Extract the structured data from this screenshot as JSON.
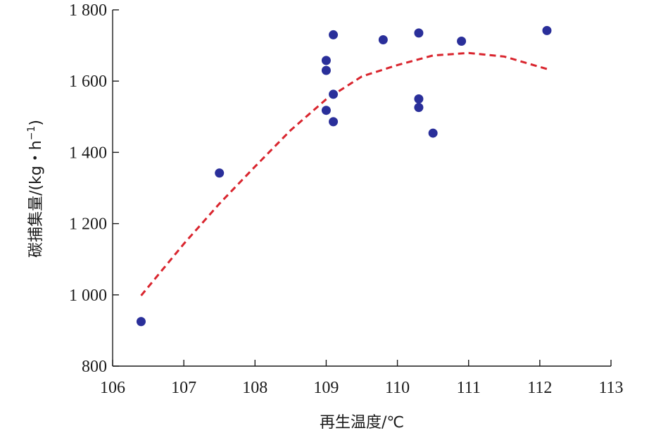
{
  "chart_data": {
    "type": "scatter",
    "xlabel": "再生温度/℃",
    "ylabel": "碳捕集量/(kg・h",
    "ylabel_sup": "−1",
    "ylabel_end": ")",
    "xlim": [
      106,
      113
    ],
    "ylim": [
      800,
      1800
    ],
    "x_ticks": [
      106,
      107,
      108,
      109,
      110,
      111,
      112,
      113
    ],
    "x_tick_labels": [
      "106",
      "107",
      "108",
      "109",
      "110",
      "111",
      "112",
      "113"
    ],
    "y_ticks": [
      800,
      1000,
      1200,
      1400,
      1600,
      1800
    ],
    "y_tick_labels": [
      "800",
      "1 000",
      "1 200",
      "1 400",
      "1 600",
      "1 800"
    ],
    "grid": false,
    "points": [
      {
        "x": 106.4,
        "y": 925
      },
      {
        "x": 107.5,
        "y": 1342
      },
      {
        "x": 109.0,
        "y": 1658
      },
      {
        "x": 109.0,
        "y": 1630
      },
      {
        "x": 109.0,
        "y": 1518
      },
      {
        "x": 109.1,
        "y": 1730
      },
      {
        "x": 109.1,
        "y": 1563
      },
      {
        "x": 109.1,
        "y": 1486
      },
      {
        "x": 109.8,
        "y": 1716
      },
      {
        "x": 110.3,
        "y": 1735
      },
      {
        "x": 110.3,
        "y": 1550
      },
      {
        "x": 110.3,
        "y": 1526
      },
      {
        "x": 110.5,
        "y": 1454
      },
      {
        "x": 110.9,
        "y": 1712
      },
      {
        "x": 112.1,
        "y": 1742
      }
    ],
    "fit_curve": {
      "style": "dashed",
      "points": [
        {
          "x": 106.4,
          "y": 998
        },
        {
          "x": 107.0,
          "y": 1143
        },
        {
          "x": 107.5,
          "y": 1256
        },
        {
          "x": 108.0,
          "y": 1360
        },
        {
          "x": 108.5,
          "y": 1462
        },
        {
          "x": 109.0,
          "y": 1549
        },
        {
          "x": 109.5,
          "y": 1613
        },
        {
          "x": 110.0,
          "y": 1645
        },
        {
          "x": 110.5,
          "y": 1672
        },
        {
          "x": 111.0,
          "y": 1679
        },
        {
          "x": 111.5,
          "y": 1669
        },
        {
          "x": 112.1,
          "y": 1634
        }
      ]
    },
    "colors": {
      "points": "#2a2f9a",
      "fit_line": "#d9252e",
      "axis": "#1a1a1a"
    }
  }
}
